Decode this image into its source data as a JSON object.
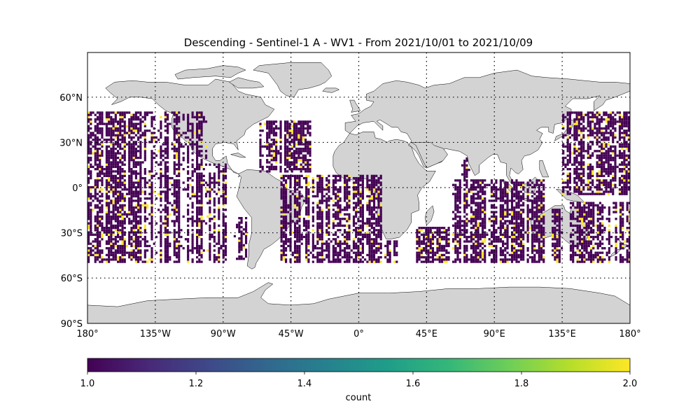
{
  "chart_data": {
    "type": "heatmap",
    "title": "Descending - Sentinel-1 A - WV1 - From 2021/10/01 to 2021/10/09",
    "projection": "PlateCarree",
    "xlim": [
      -180,
      180
    ],
    "ylim": [
      -90,
      90
    ],
    "lat_ticks": [
      {
        "value": 60,
        "label": "60°N"
      },
      {
        "value": 30,
        "label": "30°N"
      },
      {
        "value": 0,
        "label": "0°"
      },
      {
        "value": -30,
        "label": "30°S"
      },
      {
        "value": -60,
        "label": "60°S"
      },
      {
        "value": -90,
        "label": "90°S"
      }
    ],
    "lon_ticks": [
      {
        "value": -180,
        "label": "180°"
      },
      {
        "value": -135,
        "label": "135°W"
      },
      {
        "value": -90,
        "label": "90°W"
      },
      {
        "value": -45,
        "label": "45°W"
      },
      {
        "value": 0,
        "label": "0°"
      },
      {
        "value": 45,
        "label": "45°E"
      },
      {
        "value": 90,
        "label": "90°E"
      },
      {
        "value": 135,
        "label": "135°E"
      },
      {
        "value": 180,
        "label": "180°"
      }
    ],
    "grid": true,
    "grid_style": "dotted",
    "land_color": "#d3d3d3",
    "coastline_color": "#000000",
    "cell_size_deg": 1.5,
    "coverage_regions": [
      {
        "lon": [
          -180,
          -101
        ],
        "lat": [
          -50,
          50
        ]
      },
      {
        "lon": [
          -101,
          -88
        ],
        "lat": [
          -50,
          15
        ]
      },
      {
        "lon": [
          -83,
          -74
        ],
        "lat": [
          -48,
          -20
        ]
      },
      {
        "lon": [
          -66,
          -32
        ],
        "lat": [
          10,
          44
        ]
      },
      {
        "lon": [
          -52,
          15
        ],
        "lat": [
          -50,
          8
        ]
      },
      {
        "lon": [
          17,
          25
        ],
        "lat": [
          -50,
          -35
        ]
      },
      {
        "lon": [
          38,
          60
        ],
        "lat": [
          -50,
          -27
        ]
      },
      {
        "lon": [
          62,
          123
        ],
        "lat": [
          -50,
          5
        ]
      },
      {
        "lon": [
          68,
          73
        ],
        "lat": [
          5,
          20
        ]
      },
      {
        "lon": [
          128,
          135
        ],
        "lat": [
          -50,
          -15
        ]
      },
      {
        "lon": [
          140,
          180
        ],
        "lat": [
          -50,
          -10
        ]
      },
      {
        "lon": [
          135,
          180
        ],
        "lat": [
          -5,
          50
        ]
      }
    ],
    "values_present": [
      1,
      2
    ],
    "colorbar": {
      "label": "count",
      "min": 1.0,
      "max": 2.0,
      "colormap": "viridis",
      "ticks": [
        {
          "value": 1.0,
          "label": "1.0"
        },
        {
          "value": 1.2,
          "label": "1.2"
        },
        {
          "value": 1.4,
          "label": "1.4"
        },
        {
          "value": 1.6,
          "label": "1.6"
        },
        {
          "value": 1.8,
          "label": "1.8"
        },
        {
          "value": 2.0,
          "label": "2.0"
        }
      ],
      "stops": [
        "#440154",
        "#482878",
        "#3e4989",
        "#31688e",
        "#26828e",
        "#1f9e89",
        "#35b779",
        "#6ece58",
        "#b5de2b",
        "#fde725"
      ]
    }
  }
}
